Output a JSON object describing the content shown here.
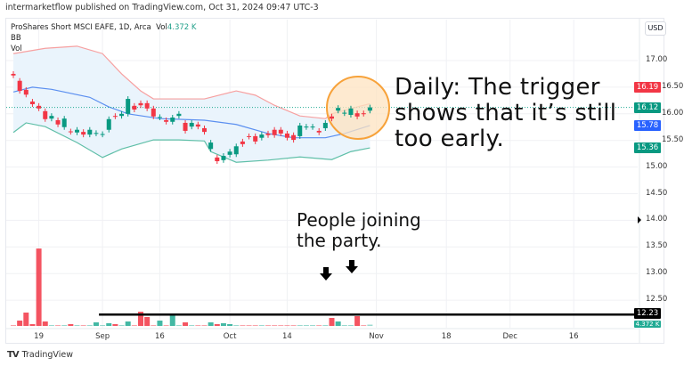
{
  "header": {
    "text": "intermarketflow published on TradingView.com, Oct 31, 2024 09:47 UTC-3"
  },
  "legend": {
    "symbol": "ProShares Short MSCI EAFE, 1D, Arca",
    "vol_label": "Vol",
    "vol_value": "4.372 K",
    "bb": "BB",
    "vol": "Vol"
  },
  "currency_button": "USD",
  "colors": {
    "up": "#089981",
    "down": "#f23645",
    "bb_upper": "#f7a0a0",
    "bb_mid": "#5b8ff0",
    "bb_lower": "#5fbfa8",
    "bb_fill": "#eaf4fc",
    "circle_fill": "#fde3c0",
    "circle_stroke": "#f7a23a"
  },
  "price_axis": {
    "ticks": [
      "17.00",
      "16.50",
      "16.00",
      "15.50",
      "15.00",
      "14.50",
      "14.00",
      "13.50",
      "13.00",
      "12.50"
    ],
    "ylim": [
      12.0,
      17.4
    ]
  },
  "price_labels": [
    {
      "value": "16.19",
      "color": "#f23645"
    },
    {
      "value": "16.12",
      "color": "#089981"
    },
    {
      "value": "15.78",
      "color": "#2962ff"
    },
    {
      "value": "15.36",
      "color": "#089981"
    },
    {
      "value": "12.23",
      "color": "#000000"
    },
    {
      "value": "4.372 K",
      "color": "#22ab94"
    }
  ],
  "time_axis": [
    {
      "label": "19",
      "date": "Aug 19"
    },
    {
      "label": "Sep",
      "date": "Sep 3"
    },
    {
      "label": "16",
      "date": "Sep 16"
    },
    {
      "label": "Oct",
      "date": "Oct 1"
    },
    {
      "label": "14",
      "date": "Oct 14"
    },
    {
      "label": "Nov",
      "date": "Nov 1"
    },
    {
      "label": "18",
      "date": "Nov 18"
    },
    {
      "label": "Dec",
      "date": "Dec 2"
    },
    {
      "label": "16",
      "date": "Dec 16"
    }
  ],
  "dates": [
    "Aug 13",
    "Aug 14",
    "Aug 15",
    "Aug 16",
    "Aug 19",
    "Aug 20",
    "Aug 21",
    "Aug 22",
    "Aug 23",
    "Aug 26",
    "Aug 27",
    "Aug 28",
    "Aug 29",
    "Aug 30",
    "Sep 3",
    "Sep 4",
    "Sep 5",
    "Sep 6",
    "Sep 9",
    "Sep 10",
    "Sep 11",
    "Sep 12",
    "Sep 13",
    "Sep 16",
    "Sep 17",
    "Sep 18",
    "Sep 19",
    "Sep 20",
    "Sep 23",
    "Sep 24",
    "Sep 25",
    "Sep 26",
    "Sep 27",
    "Sep 30",
    "Oct 1",
    "Oct 2",
    "Oct 3",
    "Oct 4",
    "Oct 7",
    "Oct 8",
    "Oct 9",
    "Oct 10",
    "Oct 11",
    "Oct 14",
    "Oct 15",
    "Oct 16",
    "Oct 17",
    "Oct 18",
    "Oct 21",
    "Oct 22",
    "Oct 23",
    "Oct 24",
    "Oct 25",
    "Oct 28",
    "Oct 29",
    "Oct 30",
    "Oct 31"
  ],
  "candles_open_close": [
    [
      16.75,
      16.72
    ],
    [
      16.62,
      16.43
    ],
    [
      16.45,
      16.36
    ],
    [
      16.23,
      16.18
    ],
    [
      16.15,
      16.1
    ],
    [
      16.05,
      15.9
    ],
    [
      15.91,
      15.96
    ],
    [
      15.88,
      15.8
    ],
    [
      15.75,
      15.91
    ],
    [
      15.67,
      15.66
    ],
    [
      15.65,
      15.7
    ],
    [
      15.66,
      15.61
    ],
    [
      15.61,
      15.7
    ],
    [
      15.63,
      15.64
    ],
    [
      15.61,
      15.62
    ],
    [
      15.7,
      15.9
    ],
    [
      15.96,
      15.95
    ],
    [
      15.96,
      16.0
    ],
    [
      16.0,
      16.28
    ],
    [
      16.15,
      16.08
    ],
    [
      16.2,
      16.16
    ],
    [
      16.2,
      16.1
    ],
    [
      16.1,
      15.95
    ],
    [
      15.93,
      15.94
    ],
    [
      15.88,
      15.85
    ],
    [
      15.85,
      15.93
    ],
    [
      15.96,
      16.0
    ],
    [
      15.83,
      15.68
    ],
    [
      15.76,
      15.83
    ],
    [
      15.8,
      15.76
    ],
    [
      15.73,
      15.66
    ],
    [
      15.34,
      15.46
    ],
    [
      15.18,
      15.11
    ],
    [
      15.13,
      15.21
    ],
    [
      15.23,
      15.29
    ],
    [
      15.24,
      15.39
    ],
    [
      15.48,
      15.43
    ],
    [
      15.58,
      15.57
    ],
    [
      15.58,
      15.48
    ],
    [
      15.55,
      15.61
    ],
    [
      15.63,
      15.6
    ],
    [
      15.7,
      15.6
    ],
    [
      15.7,
      15.63
    ],
    [
      15.63,
      15.55
    ],
    [
      15.6,
      15.51
    ],
    [
      15.58,
      15.78
    ],
    [
      15.75,
      15.76
    ],
    [
      15.75,
      15.76
    ],
    [
      15.68,
      15.65
    ],
    [
      15.73,
      15.83
    ],
    [
      15.95,
      15.91
    ],
    [
      16.06,
      16.11
    ],
    [
      16.01,
      16.02
    ],
    [
      15.98,
      16.1
    ],
    [
      16.01,
      15.95
    ],
    [
      16.01,
      16.0
    ],
    [
      16.06,
      16.12
    ]
  ],
  "volume_k": [
    3,
    18,
    45,
    6,
    261,
    15,
    3,
    3,
    3,
    6,
    3,
    3,
    3,
    12,
    3,
    9,
    6,
    3,
    15,
    3,
    48,
    30,
    3,
    18,
    3,
    39,
    3,
    12,
    3,
    3,
    3,
    12,
    6,
    9,
    6,
    3,
    3,
    3,
    3,
    3,
    3,
    3,
    3,
    3,
    3,
    3,
    3,
    3,
    3,
    3,
    27,
    15,
    3,
    3,
    33,
    3,
    4.372
  ],
  "bollinger": {
    "upper": [
      [
        "Aug 13",
        17.13
      ],
      [
        "Aug 20",
        17.23
      ],
      [
        "Aug 27",
        17.27
      ],
      [
        "Sep 3",
        17.13
      ],
      [
        "Sep 6",
        16.75
      ],
      [
        "Sep 11",
        16.43
      ],
      [
        "Sep 13",
        16.28
      ],
      [
        "Sep 25",
        16.28
      ],
      [
        "Oct 2",
        16.43
      ],
      [
        "Oct 7",
        16.35
      ],
      [
        "Oct 10",
        16.16
      ],
      [
        "Oct 16",
        15.96
      ],
      [
        "Oct 22",
        15.91
      ],
      [
        "Oct 23",
        16.0
      ],
      [
        "Oct 29",
        16.13
      ],
      [
        "Oct 31",
        16.19
      ]
    ],
    "middle": [
      [
        "Aug 13",
        16.41
      ],
      [
        "Aug 16",
        16.5
      ],
      [
        "Aug 21",
        16.46
      ],
      [
        "Aug 29",
        16.31
      ],
      [
        "Sep 4",
        16.13
      ],
      [
        "Sep 9",
        16.0
      ],
      [
        "Sep 16",
        15.91
      ],
      [
        "Sep 25",
        15.88
      ],
      [
        "Oct 2",
        15.8
      ],
      [
        "Oct 9",
        15.63
      ],
      [
        "Oct 15",
        15.55
      ],
      [
        "Oct 22",
        15.55
      ],
      [
        "Oct 25",
        15.63
      ],
      [
        "Oct 31",
        15.78
      ]
    ],
    "lower": [
      [
        "Aug 13",
        15.65
      ],
      [
        "Aug 15",
        15.83
      ],
      [
        "Aug 20",
        15.76
      ],
      [
        "Aug 27",
        15.46
      ],
      [
        "Sep 3",
        15.18
      ],
      [
        "Sep 6",
        15.34
      ],
      [
        "Sep 13",
        15.51
      ],
      [
        "Sep 19",
        15.51
      ],
      [
        "Sep 25",
        15.49
      ],
      [
        "Sep 26",
        15.29
      ],
      [
        "Oct 2",
        15.09
      ],
      [
        "Oct 9",
        15.13
      ],
      [
        "Oct 16",
        15.19
      ],
      [
        "Oct 23",
        15.14
      ],
      [
        "Oct 28",
        15.29
      ],
      [
        "Oct 31",
        15.36
      ]
    ]
  },
  "horizontal_line": {
    "price": 12.23,
    "start_date": "Sep 3"
  },
  "current_price": 16.12,
  "annotations": {
    "daily_note": [
      "Daily: The trigger",
      "shows that it’s still",
      "too early."
    ],
    "volume_note": [
      "People joining",
      "the party."
    ],
    "arrow_dates": [
      "Oct 22",
      "Oct 25"
    ]
  },
  "footer": {
    "brand": "TradingView"
  }
}
